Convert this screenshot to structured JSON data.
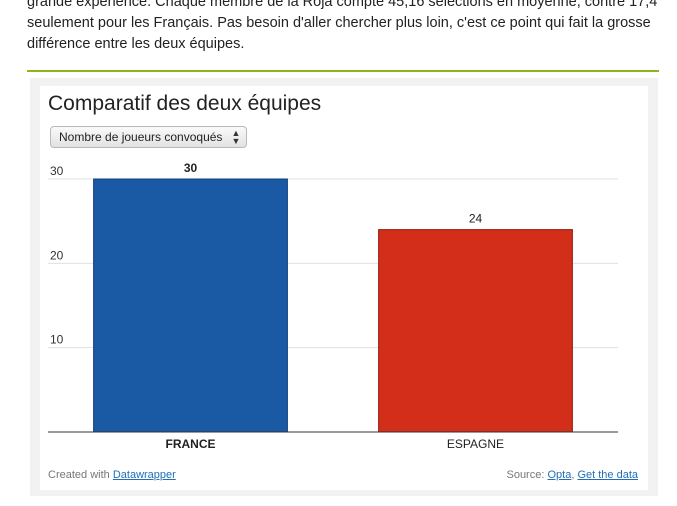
{
  "article": {
    "lines": [
      "grande expérience. Chaque membre de la Roja compte 45,16 sélections en moyenne, contre 17,4",
      "seulement pour les Français. Pas besoin d'aller chercher plus loin, c'est ce point qui fait la grosse",
      "différence entre les deux équipes."
    ]
  },
  "colors": {
    "rule": "#8db31f",
    "france": "#1a5aa4",
    "espagne": "#d22e1a"
  },
  "selector": {
    "label": "Nombre de joueurs convoqués",
    "icon": "up-down-arrows-icon"
  },
  "footer": {
    "created_prefix": "Created with",
    "created_link": "Datawrapper",
    "source_prefix": "Source:",
    "source_link": "Opta",
    "separator": ",",
    "data_link": "Get the data"
  },
  "chart_data": {
    "type": "bar",
    "title": "Comparatif des deux équipes",
    "categories": [
      "FRANCE",
      "ESPAGNE"
    ],
    "values": [
      30,
      24
    ],
    "highlight": "FRANCE",
    "yticks": [
      30,
      20,
      10
    ],
    "ylim": [
      0,
      30
    ],
    "xlabel": "",
    "ylabel": "",
    "grid": true
  }
}
